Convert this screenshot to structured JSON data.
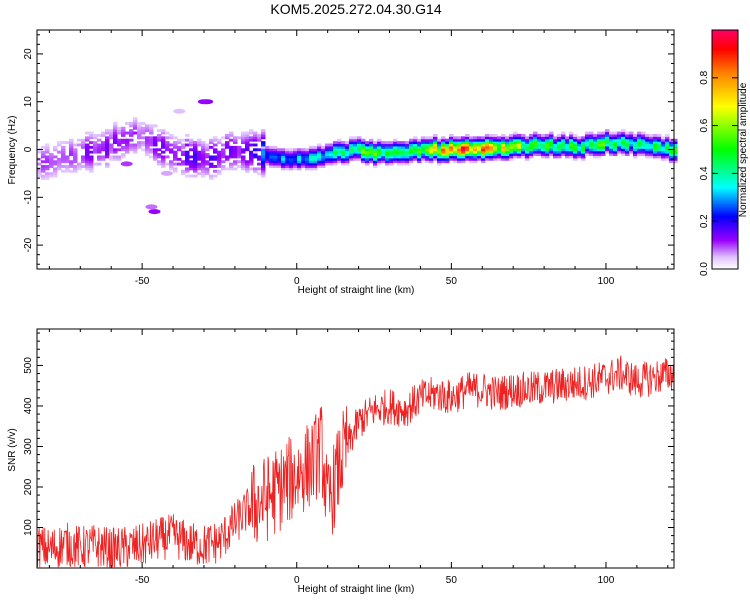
{
  "title": "KOM5.2025.272.04.30.G14",
  "chart_data": [
    {
      "type": "heatmap",
      "xlabel": "Height of straight line (km)",
      "ylabel": "Frequency (Hz)",
      "xlim": [
        -84,
        122
      ],
      "ylim": [
        -25,
        25
      ],
      "xticks": [
        -50,
        0,
        50,
        100
      ],
      "yticks": [
        -20,
        -10,
        0,
        10,
        20
      ],
      "grid": false,
      "colorbar": {
        "label": "Normalized spectral amplitude",
        "range": [
          0,
          1
        ],
        "ticks": [
          "0.0",
          "0.2",
          "0.4",
          "0.6",
          "0.8"
        ],
        "colors": [
          "#ffffff",
          "#d9b3ff",
          "#9900ff",
          "#0000ff",
          "#00ffff",
          "#00ff00",
          "#ffff00",
          "#ff8000",
          "#ff0000",
          "#ff0066"
        ]
      },
      "ridge": {
        "x": [
          -84,
          -70,
          -60,
          -50,
          -40,
          -30,
          -20,
          -10,
          0,
          10,
          20,
          30,
          40,
          50,
          60,
          70,
          80,
          90,
          100,
          110,
          122
        ],
        "freq": [
          -3,
          -1,
          1,
          3,
          -1,
          -2,
          0,
          -1,
          -2,
          -1,
          0,
          -1,
          0,
          0,
          0,
          0.5,
          1,
          0.5,
          1.5,
          1,
          0
        ],
        "amplitude": [
          0.08,
          0.12,
          0.12,
          0.1,
          0.15,
          0.15,
          0.12,
          0.25,
          0.3,
          0.35,
          0.5,
          0.45,
          0.6,
          0.9,
          0.8,
          0.55,
          0.5,
          0.45,
          0.5,
          0.4,
          0.45
        ]
      }
    },
    {
      "type": "line",
      "xlabel": "Height of straight line (km)",
      "ylabel": "SNR (v/v)",
      "xlim": [
        -84,
        122
      ],
      "ylim": [
        0,
        590
      ],
      "xticks": [
        -50,
        0,
        50,
        100
      ],
      "yticks": [
        100,
        200,
        300,
        400,
        500
      ],
      "grid": false,
      "color": "#ee2222",
      "series": [
        {
          "x": [
            -84,
            -80,
            -75,
            -70,
            -65,
            -60,
            -55,
            -50,
            -45,
            -40,
            -35,
            -30,
            -25,
            -20,
            -15,
            -10,
            -5,
            0,
            5,
            8,
            10,
            15,
            20,
            25,
            30,
            35,
            40,
            45,
            50,
            55,
            60,
            65,
            70,
            75,
            80,
            85,
            90,
            95,
            100,
            105,
            110,
            115,
            122
          ],
          "y": [
            55,
            45,
            60,
            50,
            55,
            45,
            50,
            55,
            70,
            80,
            60,
            55,
            65,
            110,
            150,
            170,
            200,
            230,
            260,
            300,
            150,
            280,
            360,
            390,
            400,
            390,
            420,
            430,
            420,
            440,
            440,
            430,
            440,
            440,
            445,
            450,
            455,
            460,
            470,
            480,
            460,
            470,
            480
          ]
        }
      ]
    }
  ]
}
